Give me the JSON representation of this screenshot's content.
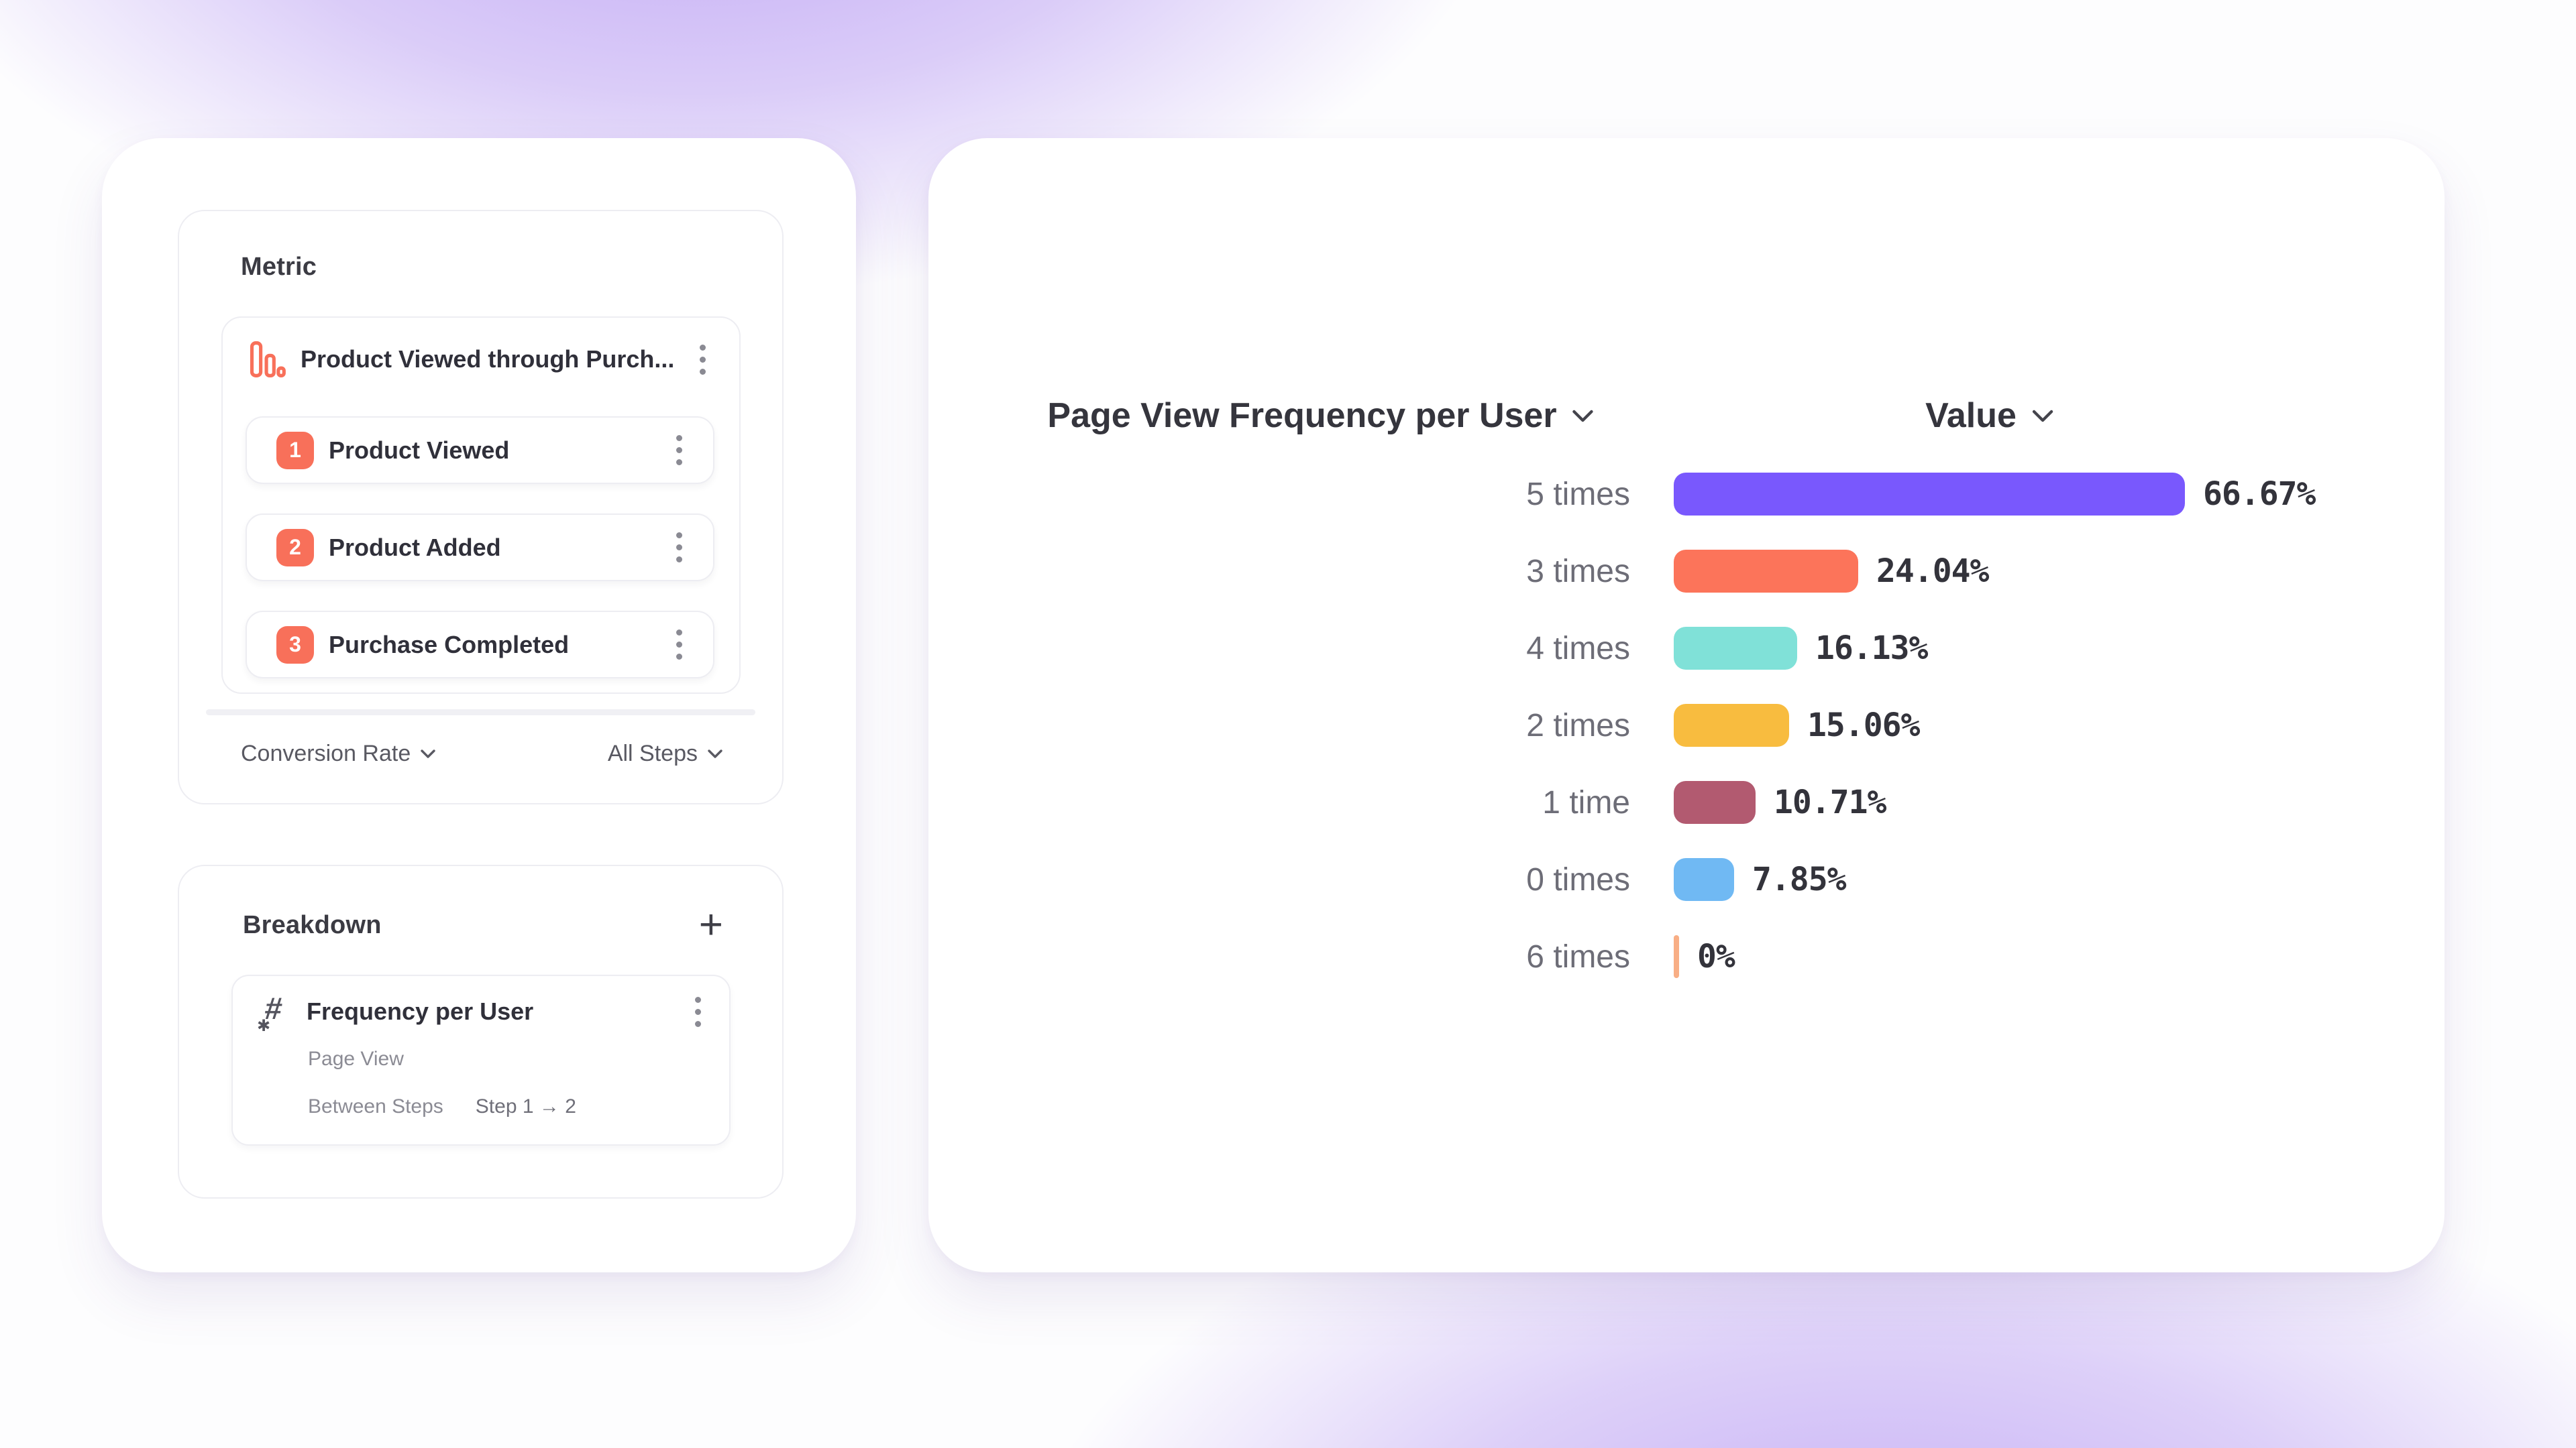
{
  "colors": {
    "accent_orange": "#F8705A",
    "background_purple": "#B9A0EC",
    "text_dark": "#33333B",
    "text_gray": "#6D6D77",
    "text_light_gray": "#8B8B94"
  },
  "icons": {
    "metric_icon": "descending-bars-funnel",
    "breakdown_icon": "hash-number",
    "row_menu_icon": "kebab-vertical-dots",
    "add_icon": "plus",
    "dropdown_icon": "chevron-down"
  },
  "metric_panel": {
    "title": "Metric",
    "funnel": {
      "title": "Product Viewed through Purch...",
      "steps": [
        {
          "number": "1",
          "label": "Product Viewed"
        },
        {
          "number": "2",
          "label": "Product Added"
        },
        {
          "number": "3",
          "label": "Purchase Completed"
        }
      ]
    },
    "footer": {
      "left_dropdown": "Conversion Rate",
      "right_dropdown": "All Steps"
    }
  },
  "breakdown_panel": {
    "title": "Breakdown",
    "add_label": "+",
    "item": {
      "title": "Frequency per User",
      "event": "Page View",
      "scope_label": "Between Steps",
      "scope_value": "Step 1 → 2"
    }
  },
  "chart": {
    "series_dropdown": "Page View Frequency per User",
    "value_dropdown": "Value"
  },
  "chart_data": {
    "type": "bar",
    "orientation": "horizontal",
    "title": "Page View Frequency per User",
    "value_axis_label": "Value",
    "categories": [
      "5 times",
      "3 times",
      "4 times",
      "2 times",
      "1 time",
      "0 times",
      "6 times"
    ],
    "values": [
      66.67,
      24.04,
      16.13,
      15.06,
      10.71,
      7.85,
      0
    ],
    "value_labels": [
      "66.67%",
      "24.04%",
      "16.13%",
      "15.06%",
      "10.71%",
      "7.85%",
      "0%"
    ],
    "bar_colors": [
      "#7958FD",
      "#FC745A",
      "#80E1D8",
      "#F8BC3F",
      "#B25A70",
      "#70B9F3",
      "#F8AE85"
    ],
    "xlim": [
      0,
      100
    ],
    "grid": false,
    "legend": false,
    "unit": "percent"
  }
}
